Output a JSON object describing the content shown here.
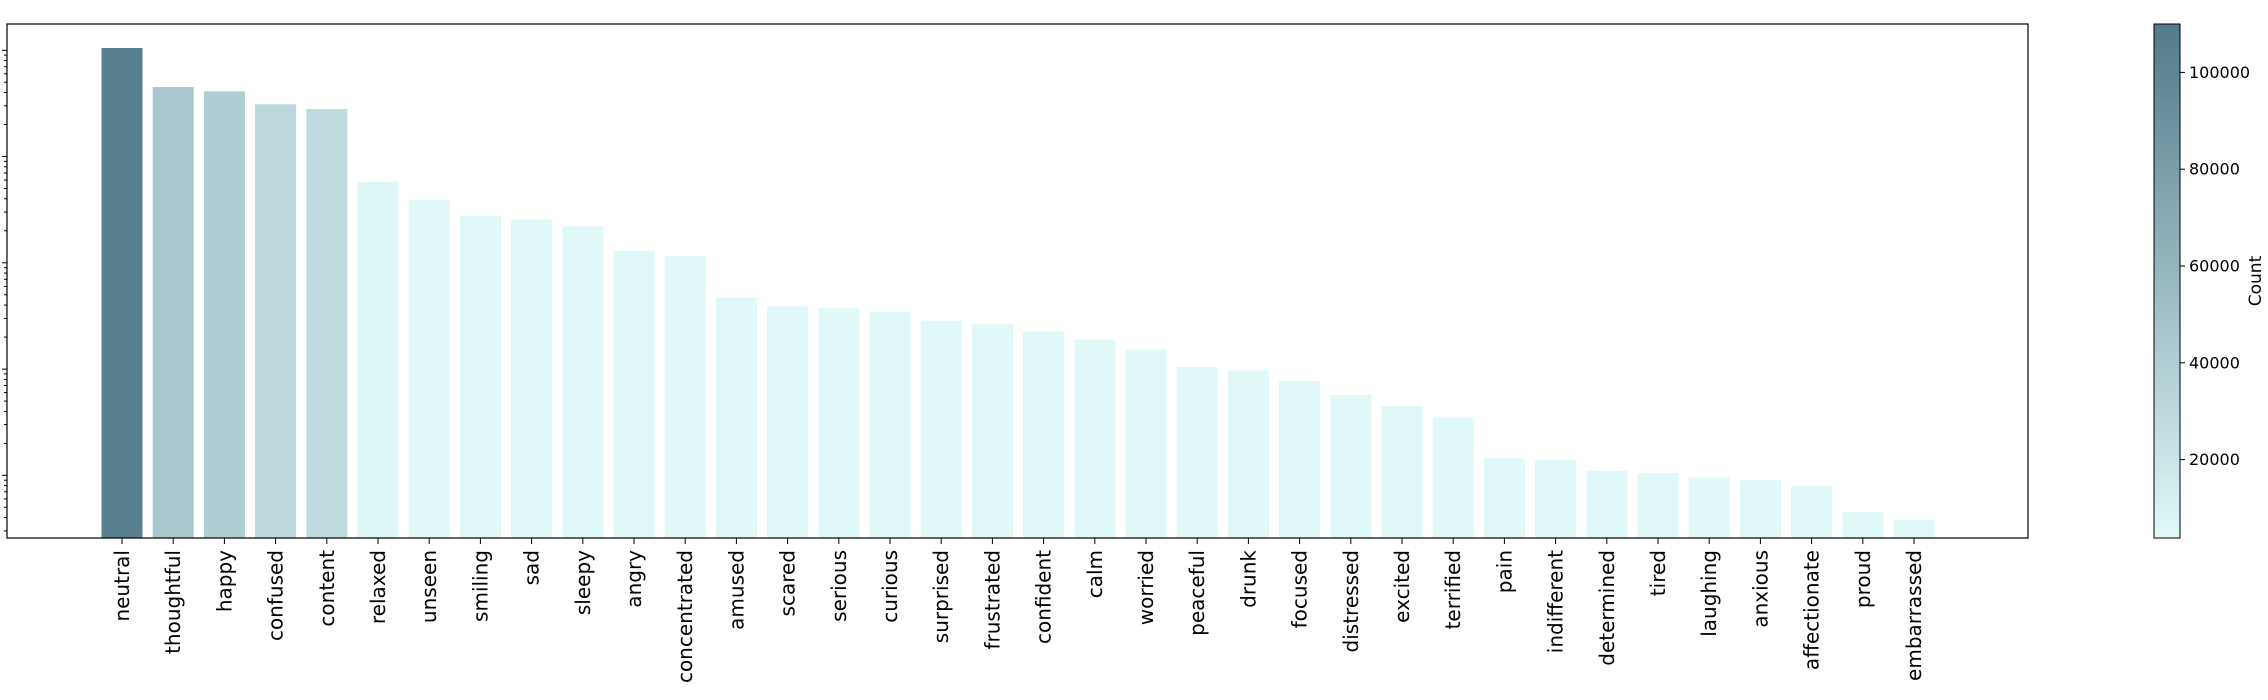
{
  "chart_data": {
    "type": "bar",
    "yscale": "log",
    "title": "",
    "xlabel": "",
    "ylabel": "",
    "categories": [
      "neutral",
      "thoughtful",
      "happy",
      "confused",
      "content",
      "relaxed",
      "unseen",
      "smiling",
      "sad",
      "sleepy",
      "angry",
      "concentrated",
      "amused",
      "scared",
      "serious",
      "curious",
      "surprised",
      "frustrated",
      "confident",
      "calm",
      "worried",
      "peaceful",
      "drunk",
      "focused",
      "distressed",
      "excited",
      "terrified",
      "pain",
      "indifferent",
      "determined",
      "tired",
      "laughing",
      "anxious",
      "affectionate",
      "proud",
      "embarrassed"
    ],
    "values": [
      105000,
      45000,
      41000,
      31000,
      28000,
      5800,
      3900,
      2750,
      2550,
      2200,
      1300,
      1150,
      470,
      390,
      375,
      345,
      285,
      265,
      225,
      190,
      152,
      105,
      97,
      77,
      57,
      45,
      35,
      14.5,
      14,
      11,
      10.5,
      9.5,
      9,
      8,
      4.5,
      3.8
    ],
    "colormap": {
      "low": "#e0f8f8",
      "high": "#527a8a"
    },
    "colorbar": {
      "label": "Count",
      "ticks": [
        20000,
        40000,
        60000,
        80000,
        100000
      ],
      "tick_labels": [
        "20000",
        "40000",
        "60000",
        "80000",
        "100000"
      ],
      "range": [
        3800,
        110000
      ]
    },
    "grid": false,
    "legend": "none"
  }
}
